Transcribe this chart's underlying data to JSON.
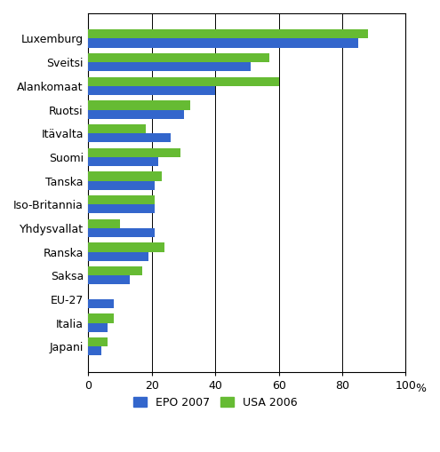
{
  "categories": [
    "Luxemburg",
    "Sveitsi",
    "Alankomaat",
    "Ruotsi",
    "Itävalta",
    "Suomi",
    "Tanska",
    "Iso-Britannia",
    "Yhdysvallat",
    "Ranska",
    "Saksa",
    "EU-27",
    "Italia",
    "Japani"
  ],
  "epo_2007": [
    85,
    51,
    40,
    30,
    26,
    22,
    21,
    21,
    21,
    19,
    13,
    8,
    6,
    4
  ],
  "usa_2006": [
    88,
    57,
    60,
    32,
    18,
    29,
    23,
    21,
    10,
    24,
    17,
    0,
    8,
    6
  ],
  "epo_color": "#3366CC",
  "usa_color": "#66BB33",
  "xlim": [
    0,
    100
  ],
  "xticks": [
    0,
    20,
    40,
    60,
    80,
    100
  ],
  "xlabel": "%",
  "legend_labels": [
    "EPO 2007",
    "USA 2006"
  ],
  "background_color": "#ffffff",
  "bar_height": 0.38,
  "gridline_color": "#000000"
}
